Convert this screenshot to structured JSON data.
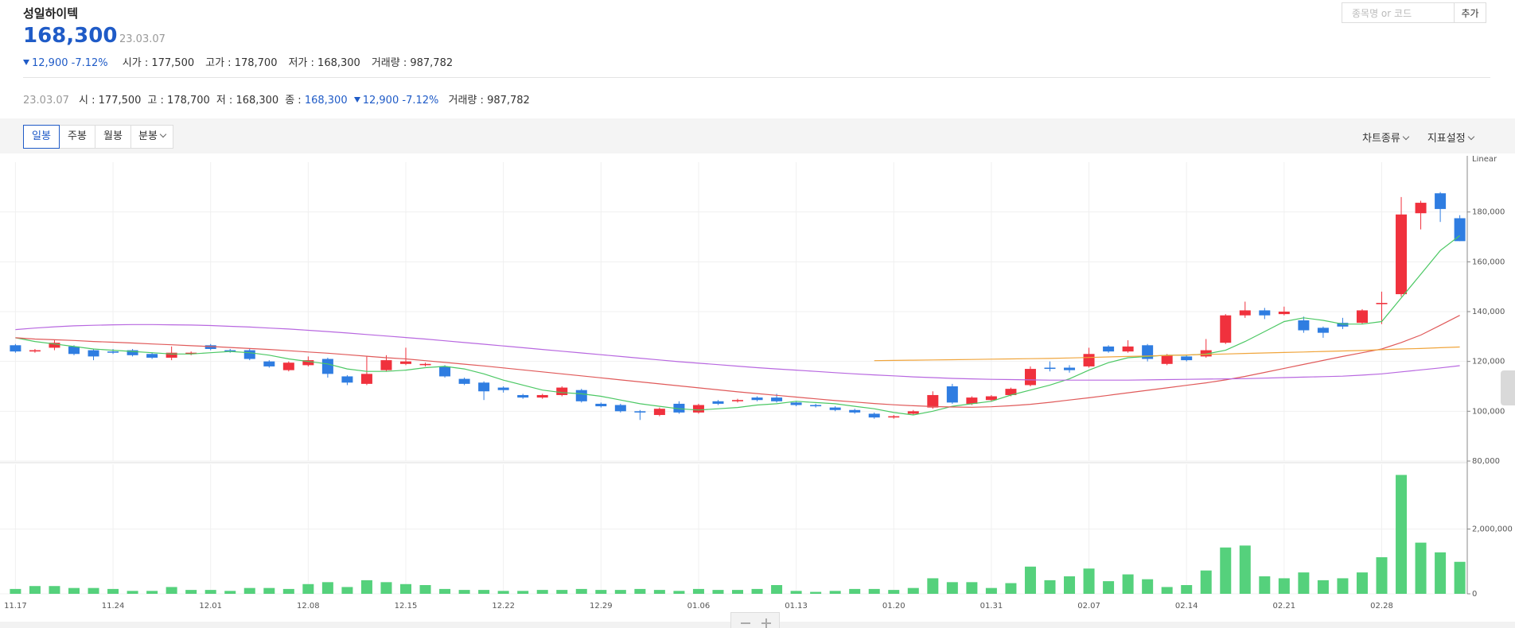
{
  "header": {
    "name": "성일하이텍",
    "price": "168,300",
    "date": "23.03.07",
    "change": "12,900",
    "change_pct": "-7.12%",
    "stats": [
      {
        "label": "시가 :",
        "value": "177,500"
      },
      {
        "label": "고가 :",
        "value": "178,700"
      },
      {
        "label": "저가 :",
        "value": "168,300"
      },
      {
        "label": "거래량 :",
        "value": "987,782"
      }
    ]
  },
  "search": {
    "placeholder": "종목명 or 코드",
    "button": "추가"
  },
  "info_bar": {
    "date": "23.03.07",
    "items": [
      {
        "label": "시 :",
        "value": "177,500"
      },
      {
        "label": "고 :",
        "value": "178,700"
      },
      {
        "label": "저 :",
        "value": "168,300"
      },
      {
        "label": "종 :",
        "value": "168,300"
      }
    ],
    "change": "12,900",
    "change_pct": "-7.12%",
    "volume_label": "거래량 :",
    "volume": "987,782"
  },
  "tabs": [
    "일봉",
    "주봉",
    "월봉",
    "분봉"
  ],
  "menus": [
    "차트종류",
    "지표설정"
  ],
  "chart_data": [
    {
      "type": "candlestick",
      "scale_label": "Linear",
      "grid": true,
      "up_color": "#f0313d",
      "down_color": "#2f7de1",
      "ylim": [
        80000,
        200000
      ],
      "yticks": [
        {
          "value": 80000,
          "label": "80,000"
        },
        {
          "value": 100000,
          "label": "100,000"
        },
        {
          "value": 120000,
          "label": "120,000"
        },
        {
          "value": 140000,
          "label": "140,000"
        },
        {
          "value": 160000,
          "label": "160,000"
        },
        {
          "value": 180000,
          "label": "180,000"
        }
      ],
      "open": [
        126500,
        124000,
        125500,
        126000,
        124500,
        124000,
        124500,
        123000,
        121500,
        123000,
        126500,
        124500,
        124500,
        120000,
        116500,
        118500,
        121000,
        114000,
        111000,
        116500,
        119000,
        118500,
        118000,
        113000,
        111500,
        109500,
        106500,
        105500,
        106500,
        108500,
        103000,
        102500,
        100000,
        98500,
        103000,
        99500,
        104000,
        104000,
        105500,
        105500,
        103500,
        102500,
        101500,
        100500,
        99000,
        97500,
        99000,
        101500,
        110000,
        103000,
        104500,
        106500,
        110500,
        117500,
        117500,
        118000,
        126000,
        124000,
        126500,
        119000,
        122000,
        122000,
        127500,
        138500,
        140500,
        139000,
        136500,
        133500,
        135500,
        135500,
        143000,
        147000,
        179500,
        187500,
        177500
      ],
      "high": [
        127000,
        125000,
        128500,
        126500,
        125000,
        125000,
        125000,
        123500,
        126000,
        124000,
        127000,
        125000,
        125000,
        120500,
        120000,
        122000,
        121500,
        114500,
        122000,
        122500,
        125500,
        119500,
        118500,
        113500,
        112000,
        110000,
        107000,
        107000,
        110000,
        109000,
        103500,
        103000,
        100500,
        101500,
        104000,
        103000,
        104500,
        105000,
        106000,
        107000,
        104000,
        103000,
        102000,
        101000,
        99500,
        98500,
        100500,
        108000,
        111000,
        106000,
        106500,
        109500,
        118000,
        120000,
        118500,
        125500,
        126500,
        128500,
        127000,
        123000,
        122500,
        129000,
        139000,
        144000,
        141500,
        142000,
        138000,
        134000,
        137500,
        141000,
        148000,
        186000,
        184500,
        188000,
        178700
      ],
      "low": [
        123500,
        123500,
        124500,
        122500,
        120500,
        123000,
        122000,
        121000,
        120500,
        122500,
        124500,
        123500,
        120500,
        117500,
        116000,
        118000,
        113500,
        110500,
        110500,
        116000,
        118500,
        118000,
        113500,
        110500,
        104500,
        107500,
        105000,
        105000,
        106000,
        103500,
        101500,
        99500,
        96500,
        98000,
        99000,
        99000,
        102500,
        103500,
        104000,
        103500,
        102000,
        101500,
        100000,
        99000,
        97000,
        97000,
        98500,
        101000,
        103000,
        102500,
        104000,
        106000,
        110000,
        116000,
        115500,
        117500,
        123500,
        123500,
        120000,
        118500,
        120000,
        121500,
        127000,
        137500,
        137000,
        138500,
        131500,
        129500,
        133000,
        135000,
        135000,
        146000,
        173000,
        176000,
        168300
      ],
      "close": [
        124000,
        124500,
        127500,
        123000,
        122000,
        123500,
        122500,
        121500,
        123500,
        123500,
        125000,
        124000,
        121000,
        118000,
        119500,
        120500,
        115000,
        111500,
        115000,
        120500,
        120000,
        119000,
        114000,
        111000,
        108000,
        108500,
        105500,
        106500,
        109500,
        104000,
        102000,
        100000,
        99500,
        101000,
        99500,
        102500,
        103000,
        104500,
        104500,
        104000,
        102500,
        102000,
        100500,
        99500,
        97500,
        98000,
        100000,
        106500,
        103500,
        105500,
        106000,
        109000,
        117000,
        117000,
        116500,
        123000,
        124000,
        126000,
        121000,
        122500,
        120500,
        124500,
        138500,
        140500,
        138500,
        140000,
        132500,
        131500,
        134000,
        140500,
        143500,
        179000,
        183700,
        181200,
        168300
      ],
      "series": [
        {
          "color": "#4cc864",
          "values": [
            129500,
            128000,
            127000,
            126000,
            125000,
            124500,
            124000,
            123500,
            123000,
            123000,
            123500,
            124000,
            123500,
            122500,
            121000,
            120000,
            119000,
            117000,
            116000,
            116000,
            116500,
            117500,
            118000,
            117000,
            115000,
            112500,
            110500,
            108500,
            107500,
            107000,
            106000,
            104500,
            103000,
            102000,
            101000,
            100500,
            101000,
            101500,
            102500,
            103000,
            104000,
            103500,
            103000,
            102000,
            101000,
            99500,
            98500,
            100000,
            102000,
            103000,
            104000,
            106500,
            108500,
            110500,
            113000,
            116500,
            119500,
            121500,
            122000,
            122500,
            122500,
            123000,
            124500,
            128000,
            132000,
            136000,
            137500,
            136500,
            135000,
            135000,
            136000,
            145500,
            155000,
            164500,
            170500
          ]
        },
        {
          "color": "#e05a5a",
          "values": [
            129500,
            129000,
            128700,
            128400,
            128000,
            127700,
            127400,
            127000,
            126700,
            126300,
            126000,
            125600,
            125200,
            124800,
            124300,
            123800,
            123300,
            122700,
            122100,
            121500,
            121000,
            120300,
            119600,
            118900,
            118200,
            117400,
            116600,
            115800,
            115000,
            114200,
            113400,
            112600,
            111800,
            111000,
            110200,
            109400,
            108600,
            107800,
            107100,
            106400,
            105700,
            105000,
            104300,
            103700,
            103100,
            102600,
            102200,
            101900,
            101700,
            101600,
            101800,
            102200,
            102800,
            103600,
            104500,
            105400,
            106400,
            107400,
            108400,
            109400,
            110400,
            111400,
            112600,
            114000,
            115600,
            117200,
            118800,
            120400,
            122000,
            123500,
            125000,
            127600,
            130600,
            134500,
            138500
          ]
        },
        {
          "color": "#f0a53c",
          "values": [
            null,
            null,
            null,
            null,
            null,
            null,
            null,
            null,
            null,
            null,
            null,
            null,
            null,
            null,
            null,
            null,
            null,
            null,
            null,
            null,
            null,
            null,
            null,
            null,
            null,
            null,
            null,
            null,
            null,
            null,
            null,
            null,
            null,
            null,
            null,
            null,
            null,
            null,
            null,
            null,
            null,
            null,
            null,
            null,
            120300,
            120400,
            120500,
            120600,
            120700,
            120800,
            120900,
            121000,
            121100,
            121200,
            121400,
            121600,
            121800,
            122000,
            122200,
            122400,
            122600,
            122800,
            123000,
            123200,
            123400,
            123600,
            123800,
            124000,
            124200,
            124400,
            124700,
            125000,
            125200,
            125500,
            125800
          ]
        },
        {
          "color": "#b868e0",
          "values": [
            132800,
            133400,
            133900,
            134300,
            134500,
            134700,
            134800,
            134800,
            134700,
            134600,
            134400,
            134100,
            133800,
            133400,
            133000,
            132500,
            132000,
            131400,
            130800,
            130200,
            129600,
            129000,
            128300,
            127600,
            126900,
            126200,
            125500,
            124800,
            124100,
            123400,
            122700,
            122000,
            121300,
            120600,
            119900,
            119300,
            118700,
            118100,
            117500,
            117000,
            116500,
            116000,
            115500,
            115000,
            114600,
            114200,
            113800,
            113500,
            113200,
            113000,
            112800,
            112700,
            112600,
            112500,
            112500,
            112500,
            112500,
            112500,
            112600,
            112700,
            112800,
            112900,
            113000,
            113100,
            113300,
            113500,
            113700,
            113900,
            114100,
            114500,
            115000,
            115800,
            116600,
            117400,
            118300
          ]
        }
      ]
    },
    {
      "type": "bar",
      "color": "#55d17c",
      "grid": true,
      "categories": [
        "11.17",
        null,
        null,
        null,
        null,
        "11.24",
        null,
        null,
        null,
        null,
        "12.01",
        null,
        null,
        null,
        null,
        "12.08",
        null,
        null,
        null,
        null,
        "12.15",
        null,
        null,
        null,
        null,
        "12.22",
        null,
        null,
        null,
        null,
        "12.29",
        null,
        null,
        null,
        null,
        "01.06",
        null,
        null,
        null,
        null,
        "01.13",
        null,
        null,
        null,
        null,
        "01.20",
        null,
        null,
        null,
        null,
        "01.31",
        null,
        null,
        null,
        null,
        "02.07",
        null,
        null,
        null,
        null,
        "02.14",
        null,
        null,
        null,
        null,
        "02.21",
        null,
        null,
        null,
        null,
        "02.28",
        null,
        null,
        null,
        null
      ],
      "values": [
        150000,
        240000,
        240000,
        180000,
        180000,
        150000,
        90000,
        90000,
        210000,
        120000,
        120000,
        90000,
        180000,
        180000,
        150000,
        300000,
        360000,
        210000,
        420000,
        360000,
        300000,
        270000,
        150000,
        120000,
        120000,
        90000,
        90000,
        120000,
        120000,
        150000,
        120000,
        120000,
        150000,
        120000,
        90000,
        150000,
        120000,
        120000,
        150000,
        270000,
        90000,
        60000,
        90000,
        150000,
        150000,
        120000,
        180000,
        480000,
        360000,
        360000,
        180000,
        330000,
        840000,
        420000,
        540000,
        780000,
        390000,
        600000,
        450000,
        210000,
        270000,
        720000,
        1430000,
        1490000,
        540000,
        480000,
        660000,
        420000,
        480000,
        660000,
        1130000,
        3670000,
        1580000,
        1280000,
        987782
      ],
      "ylim": [
        0,
        4000000
      ],
      "yticks": [
        0,
        {
          "value": 2000000,
          "label": "2,000,000"
        }
      ]
    }
  ]
}
